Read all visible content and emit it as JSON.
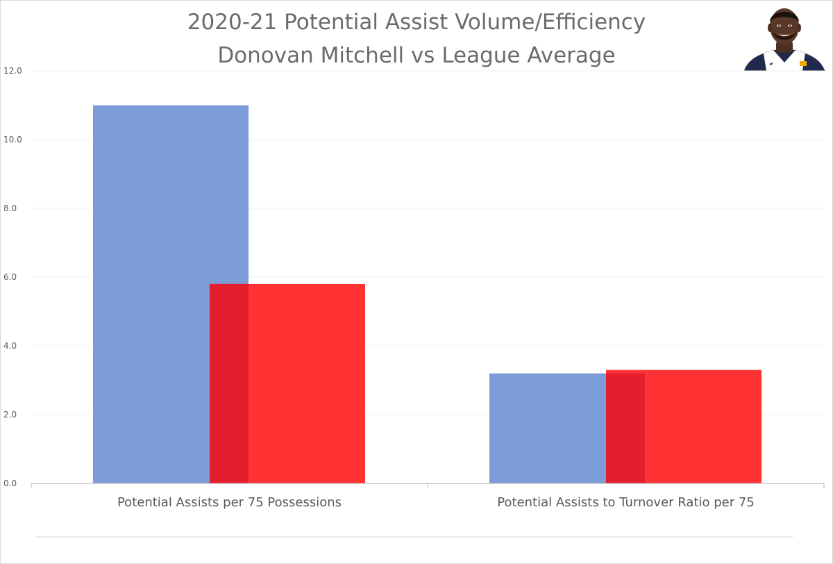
{
  "title_line1": "2020-21 Potential Assist Volume/Efficiency",
  "title_line2": "Donovan Mitchell vs League Average",
  "player_photo_icon": "player-headshot",
  "colors": {
    "series_a": "#7b9cd6",
    "series_b": "#ff3333",
    "overlap": "#e31e2d",
    "title": "#6b6b6b",
    "axis": "#bfbfbf",
    "grid": "#f0f0f0",
    "text": "#595959"
  },
  "chart_data": {
    "type": "bar",
    "title": "2020-21 Potential Assist Volume/Efficiency\nDonovan Mitchell vs League Average",
    "categories": [
      "Potential Assists per 75 Possessions",
      "Potential Assists to Turnover Ratio per 75"
    ],
    "series": [
      {
        "values": [
          11.0,
          3.2
        ]
      },
      {
        "values": [
          5.8,
          3.3
        ]
      }
    ],
    "ylim": [
      0,
      12
    ],
    "yticks": [
      "0.0",
      "2.0",
      "4.0",
      "6.0",
      "8.0",
      "10.0",
      "12.0"
    ],
    "grid": true,
    "legend": "none"
  }
}
